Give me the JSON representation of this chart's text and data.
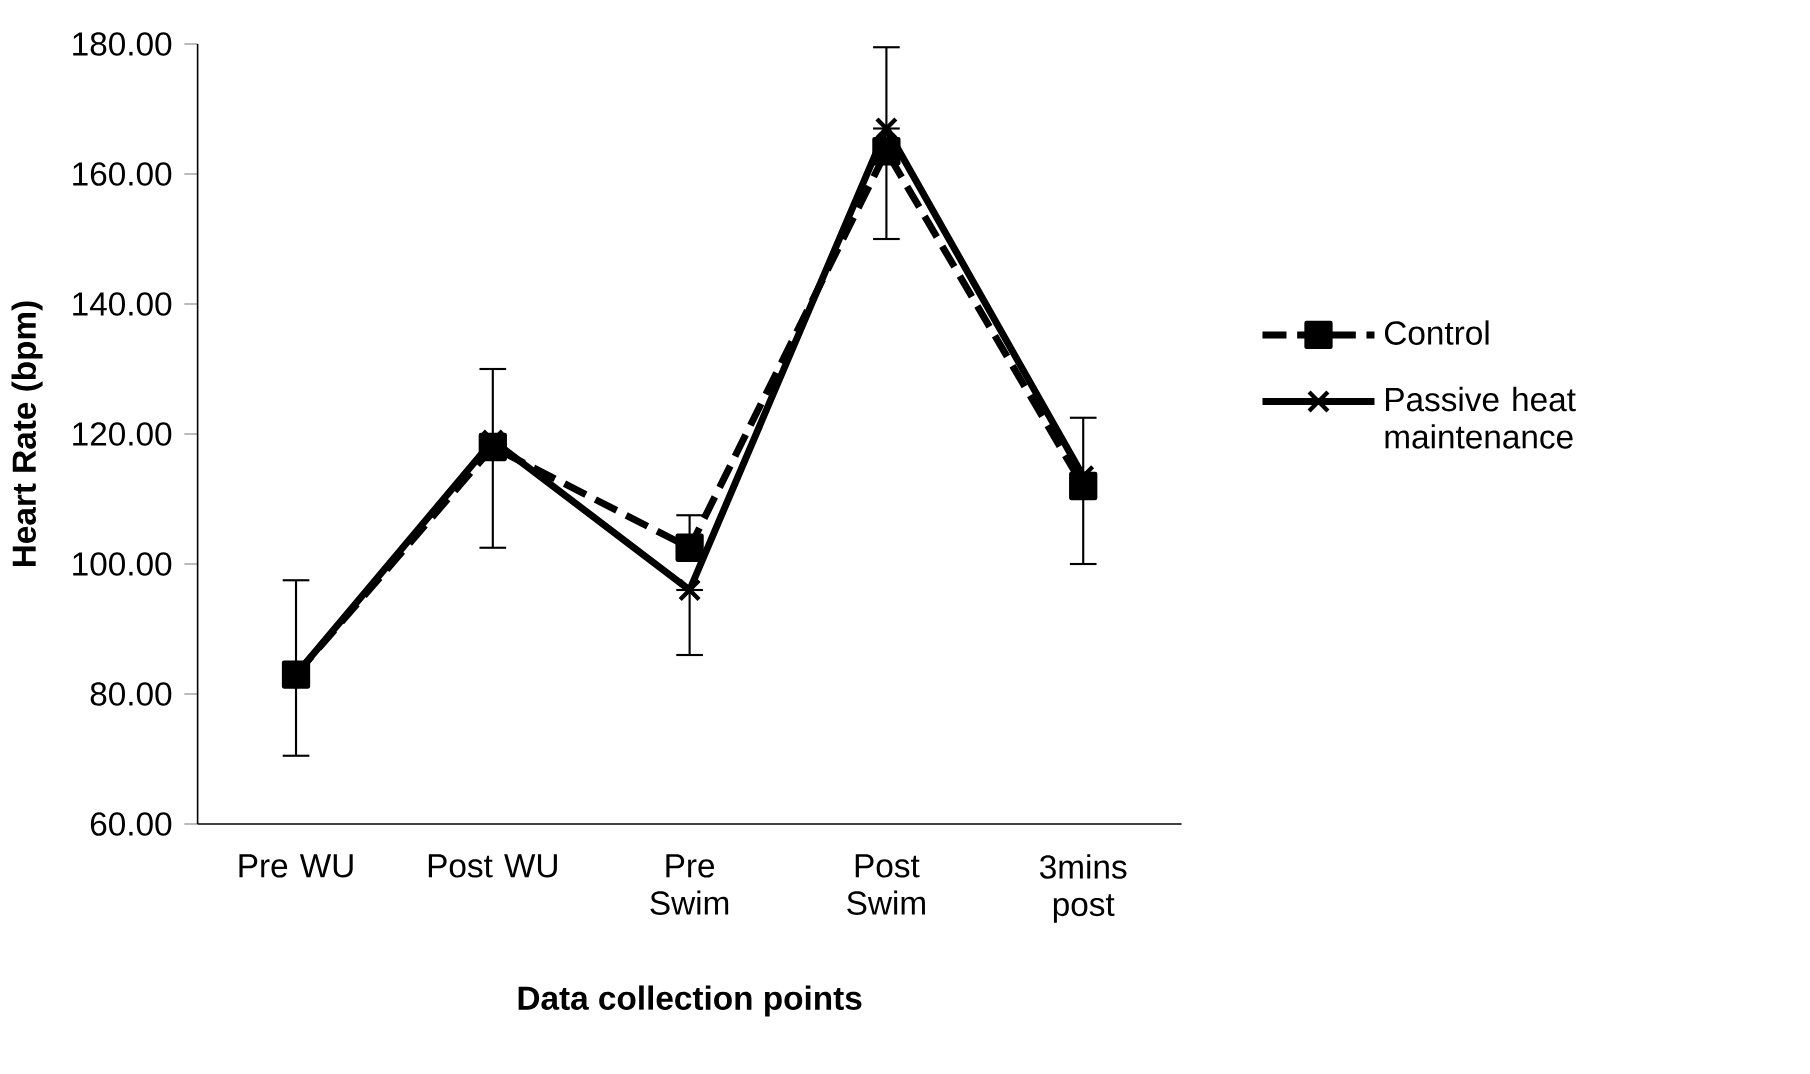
{
  "chart_data": {
    "type": "line",
    "xlabel": "Data collection points",
    "ylabel": "Heart Rate (bpm)",
    "categories": [
      "Pre WU",
      "Post WU",
      "Pre Swim",
      "Post Swim",
      "3mins post"
    ],
    "series": [
      {
        "name": "Control",
        "color": "#000000",
        "line_style": "dashed",
        "marker": "square",
        "values": [
          83,
          118,
          102.5,
          163.5,
          112
        ],
        "errors": [
          [
            70.5,
            97.5
          ],
          [
            102.5,
            130
          ],
          [
            102.5,
            107.5
          ],
          [
            150,
            163.5
          ],
          [
            100,
            122.5
          ]
        ]
      },
      {
        "name": "Passive heat maintenance",
        "color": "#000000",
        "line_style": "solid",
        "marker": "cross",
        "values": [
          83,
          119,
          96,
          167,
          113.5
        ],
        "errors": [
          null,
          null,
          [
            86,
            96
          ],
          [
            167,
            179.5
          ],
          null
        ]
      }
    ],
    "ylim": [
      60,
      180
    ],
    "yticks": [
      {
        "value": 60,
        "label": "60.00"
      },
      {
        "value": 80,
        "label": "80.00"
      },
      {
        "value": 100,
        "label": "100.00"
      },
      {
        "value": 120,
        "label": "120.00"
      },
      {
        "value": 140,
        "label": "140.00"
      },
      {
        "value": 160,
        "label": "160.00"
      },
      {
        "value": 180,
        "label": "180.00"
      }
    ],
    "grid": false,
    "legend": "right"
  }
}
